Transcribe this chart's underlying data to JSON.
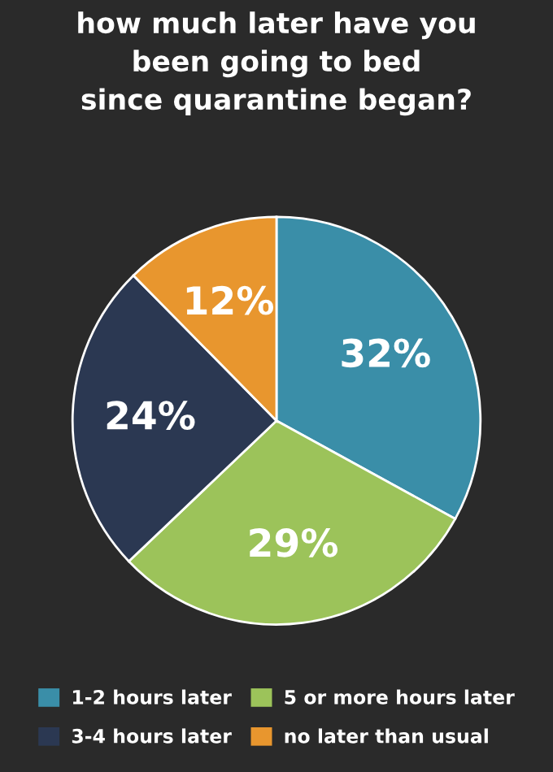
{
  "chart_data": {
    "type": "pie",
    "title": "how much later have you\nbeen going to bed\nsince quarantine began?",
    "categories": [
      "1-2 hours later",
      "5 or more hours later",
      "3-4 hours later",
      "no later than usual"
    ],
    "values": [
      32,
      29,
      24,
      12
    ],
    "colors": [
      "#3a8ea8",
      "#9cc35a",
      "#2b3852",
      "#e8962e"
    ],
    "value_labels": [
      "32%",
      "29%",
      "24%",
      "12%"
    ],
    "legend": "bottom"
  }
}
